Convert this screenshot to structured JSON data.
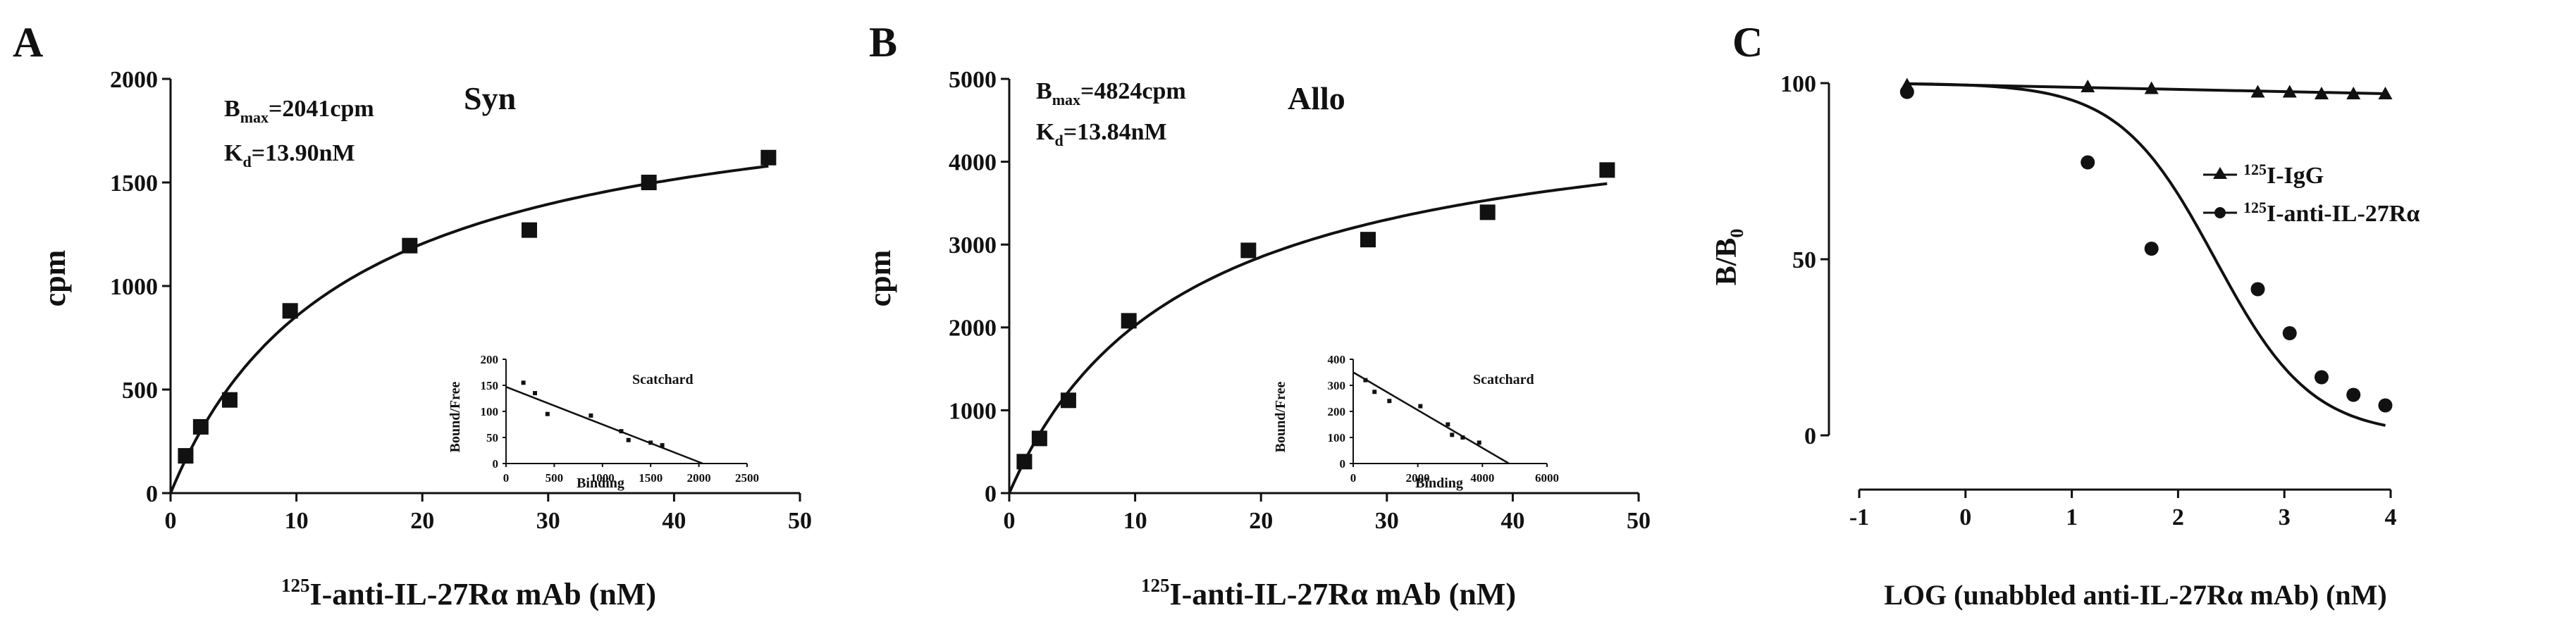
{
  "panels": [
    {
      "id": "A",
      "letter": "A",
      "xlabel_sup": "125",
      "xlabel": "I-anti-IL-27Rα mAb (nM)",
      "ylabel": "cpm",
      "title": "Syn",
      "bmax_label": "B",
      "bmax_sub": "max",
      "bmax_value": "=2041cpm",
      "kd_label": "K",
      "kd_sub": "d",
      "kd_value": "=13.90nM",
      "inset": {
        "title": "Scatchard",
        "xlabel": "Binding",
        "ylabel": "Bound/Free"
      }
    },
    {
      "id": "B",
      "letter": "B",
      "xlabel_sup": "125",
      "xlabel": "I-anti-IL-27Rα mAb (nM)",
      "ylabel": "cpm",
      "title": "Allo",
      "bmax_label": "B",
      "bmax_sub": "max",
      "bmax_value": "=4824cpm",
      "kd_label": "K",
      "kd_sub": "d",
      "kd_value": "=13.84nM",
      "inset": {
        "title": "Scatchard",
        "xlabel": "Binding",
        "ylabel": "Bound/Free"
      }
    },
    {
      "id": "C",
      "letter": "C",
      "xlabel": "LOG (unabbled anti-IL-27Rα mAb) (nM)",
      "ylabel_main": "B/B",
      "ylabel_sub": "0",
      "legend": [
        {
          "sup": "125",
          "text": "I-IgG",
          "marker": "triangle"
        },
        {
          "sup": "125",
          "text": "I-anti-IL-27Rα",
          "marker": "circle"
        }
      ]
    }
  ],
  "chart_data": [
    {
      "type": "scatter",
      "panel": "A",
      "xlim": [
        0,
        50
      ],
      "ylim": [
        0,
        2000
      ],
      "x_ticks": [
        0,
        10,
        20,
        30,
        40,
        50
      ],
      "y_ticks": [
        0,
        500,
        1000,
        1500,
        2000
      ],
      "series": [
        {
          "marker": "square",
          "x": [
            1.2,
            2.4,
            4.7,
            9.5,
            19,
            28.5,
            38,
            47.5
          ],
          "y": [
            180,
            320,
            450,
            880,
            1195,
            1270,
            1500,
            1620
          ]
        }
      ],
      "fit": {
        "model": "one-site binding",
        "bmax": 2041,
        "kd": 13.9
      },
      "inset": {
        "type": "scatter",
        "xlim": [
          0,
          2500
        ],
        "ylim": [
          0,
          200
        ],
        "x_ticks": [
          0,
          500,
          1000,
          1500,
          2000,
          2500
        ],
        "y_ticks": [
          0,
          50,
          100,
          150,
          200
        ],
        "x": [
          180,
          300,
          430,
          880,
          1195,
          1270,
          1500,
          1620
        ],
        "y": [
          155,
          135,
          95,
          92,
          62,
          45,
          40,
          35
        ],
        "fit": {
          "x": [
            0,
            2041
          ],
          "y": [
            147,
            0
          ]
        }
      }
    },
    {
      "type": "scatter",
      "panel": "B",
      "xlim": [
        0,
        50
      ],
      "ylim": [
        0,
        5000
      ],
      "x_ticks": [
        0,
        10,
        20,
        30,
        40,
        50
      ],
      "y_ticks": [
        0,
        1000,
        2000,
        3000,
        4000,
        5000
      ],
      "series": [
        {
          "marker": "square",
          "x": [
            1.2,
            2.4,
            4.7,
            9.5,
            19,
            28.5,
            38,
            47.5
          ],
          "y": [
            380,
            660,
            1120,
            2080,
            2930,
            3060,
            3390,
            3900
          ]
        }
      ],
      "fit": {
        "model": "one-site binding",
        "bmax": 4824,
        "kd": 13.84
      },
      "inset": {
        "type": "scatter",
        "xlim": [
          0,
          6000
        ],
        "ylim": [
          0,
          400
        ],
        "x_ticks": [
          0,
          2000,
          4000,
          6000
        ],
        "y_ticks": [
          0,
          100,
          200,
          300,
          400
        ],
        "x": [
          380,
          660,
          1120,
          2080,
          2930,
          3060,
          3390,
          3900
        ],
        "y": [
          320,
          275,
          240,
          220,
          150,
          110,
          100,
          80
        ],
        "fit": {
          "x": [
            0,
            4824
          ],
          "y": [
            350,
            0
          ]
        }
      }
    },
    {
      "type": "line",
      "panel": "C",
      "xlim": [
        -1,
        4
      ],
      "ylim": [
        0,
        100
      ],
      "x_ticks": [
        -1,
        0,
        1,
        2,
        3,
        4
      ],
      "y_ticks": [
        0,
        50,
        100
      ],
      "series": [
        {
          "name": "125I-IgG",
          "marker": "triangle",
          "x": [
            -0.55,
            1.15,
            1.75,
            2.75,
            3.05,
            3.35,
            3.65,
            3.95
          ],
          "y": [
            99.5,
            99,
            98.5,
            97.5,
            97.5,
            97,
            97,
            97
          ]
        },
        {
          "name": "125I-anti-IL-27Rα",
          "marker": "circle",
          "x": [
            -0.55,
            1.15,
            1.75,
            2.75,
            3.05,
            3.35,
            3.65,
            3.95
          ],
          "y": [
            97.5,
            77.5,
            53,
            41.5,
            29,
            16.5,
            11.5,
            8.5
          ]
        }
      ],
      "fits": [
        {
          "type": "linear",
          "x": [
            -0.55,
            3.95
          ],
          "y": [
            99.8,
            97
          ]
        },
        {
          "type": "sigmoid",
          "top": 100,
          "bottom": 0,
          "log_ic50": 2.35,
          "hill": 0.6
        }
      ]
    }
  ]
}
